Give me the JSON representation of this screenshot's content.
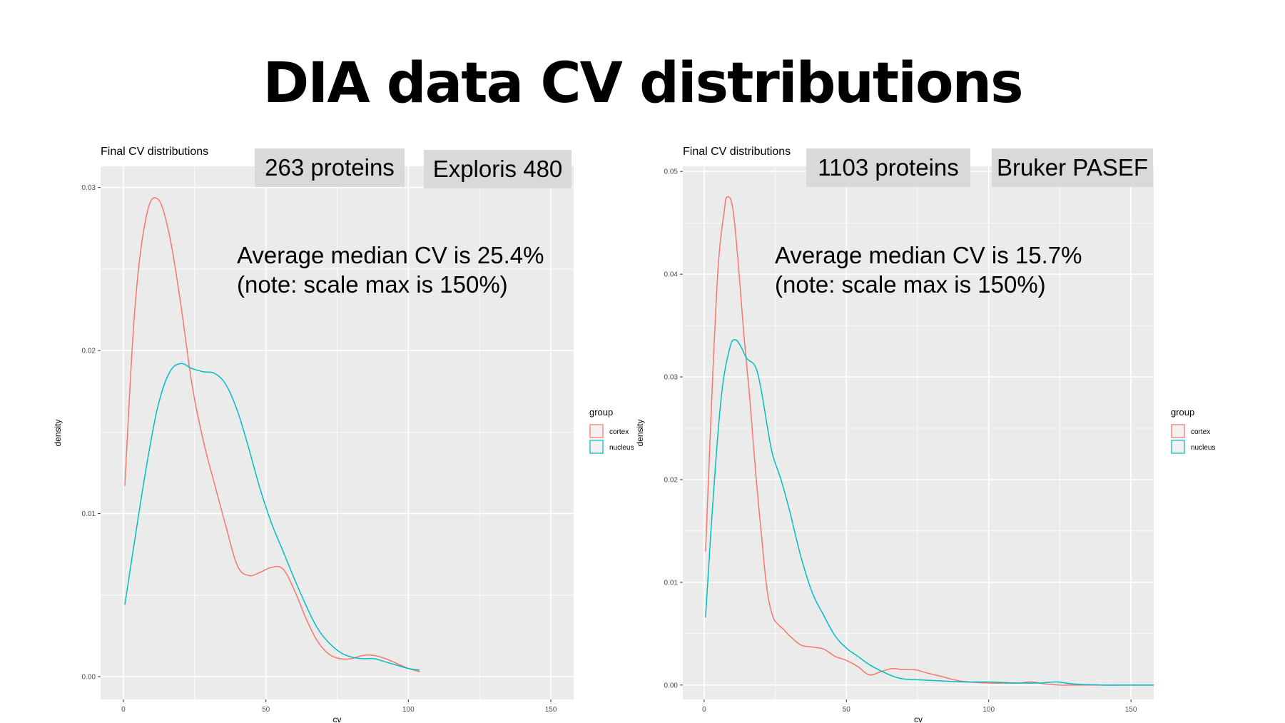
{
  "slide": {
    "title": "DIA data CV distributions"
  },
  "colors": {
    "cortex": "#f8766d",
    "nucleus": "#00bfc4",
    "panel_bg": "#ebebeb",
    "grid": "#ffffff",
    "callout_bg": "#d9d9d9"
  },
  "chart_data": [
    {
      "type": "line",
      "subtype": "density",
      "title": "Final CV distributions",
      "xlabel": "cv",
      "ylabel": "density",
      "xlim": [
        -8,
        158
      ],
      "ylim": [
        -0.0014,
        0.0313
      ],
      "xticks": [
        0,
        50,
        100,
        150
      ],
      "xtick_labels": [
        "0",
        "50",
        "100",
        "150"
      ],
      "yticks": [
        0.0,
        0.01,
        0.02,
        0.03
      ],
      "ytick_labels": [
        "0.00",
        "0.01",
        "0.02",
        "0.03"
      ],
      "grid": true,
      "legend": {
        "title": "group",
        "position": "right"
      },
      "series": [
        {
          "name": "cortex",
          "x": [
            0.5,
            4,
            8,
            12,
            16,
            20,
            24,
            28,
            32,
            36,
            40,
            44,
            48,
            52,
            56,
            60,
            64,
            68,
            72,
            76,
            80,
            84,
            88,
            92,
            96,
            100,
            104
          ],
          "y": [
            0.0117,
            0.0225,
            0.0282,
            0.0293,
            0.0272,
            0.023,
            0.018,
            0.0145,
            0.0118,
            0.0092,
            0.0068,
            0.0062,
            0.0064,
            0.0067,
            0.0066,
            0.0053,
            0.0036,
            0.0022,
            0.0014,
            0.0011,
            0.0011,
            0.0013,
            0.0013,
            0.0011,
            0.0008,
            0.0005,
            0.0003
          ]
        },
        {
          "name": "nucleus",
          "x": [
            0.5,
            4,
            8,
            12,
            16,
            20,
            24,
            28,
            32,
            36,
            40,
            44,
            48,
            52,
            56,
            60,
            64,
            68,
            72,
            76,
            80,
            84,
            88,
            92,
            96,
            100,
            104
          ],
          "y": [
            0.0044,
            0.0084,
            0.0128,
            0.0165,
            0.0186,
            0.0192,
            0.0189,
            0.0187,
            0.0186,
            0.0179,
            0.0163,
            0.014,
            0.0115,
            0.0094,
            0.0077,
            0.006,
            0.0044,
            0.003,
            0.0021,
            0.0015,
            0.0012,
            0.0011,
            0.0011,
            0.0009,
            0.0007,
            0.0005,
            0.0004
          ]
        }
      ]
    },
    {
      "type": "line",
      "subtype": "density",
      "title": "Final CV distributions",
      "xlabel": "cv",
      "ylabel": "density",
      "xlim": [
        -7.5,
        158
      ],
      "ylim": [
        -0.0014,
        0.0505
      ],
      "xticks": [
        0,
        50,
        100,
        150
      ],
      "xtick_labels": [
        "0",
        "50",
        "100",
        "150"
      ],
      "yticks": [
        0.0,
        0.01,
        0.02,
        0.03,
        0.04,
        0.05
      ],
      "ytick_labels": [
        "0.00",
        "0.01",
        "0.02",
        "0.03",
        "0.04",
        "0.05"
      ],
      "grid": true,
      "legend": {
        "title": "group",
        "position": "right"
      },
      "series": [
        {
          "name": "cortex",
          "x": [
            0.5,
            3,
            5,
            7,
            8,
            10,
            12,
            14,
            16,
            18,
            20,
            22,
            24,
            26,
            28,
            30,
            34,
            38,
            42,
            46,
            50,
            54,
            58,
            62,
            66,
            70,
            74,
            78,
            84,
            90,
            100,
            110,
            115,
            120,
            125,
            130,
            140,
            150,
            158
          ],
          "y": [
            0.013,
            0.03,
            0.041,
            0.046,
            0.0475,
            0.0465,
            0.041,
            0.034,
            0.028,
            0.021,
            0.015,
            0.0095,
            0.0068,
            0.0059,
            0.0054,
            0.0048,
            0.0039,
            0.0037,
            0.0035,
            0.0028,
            0.0024,
            0.0018,
            0.001,
            0.0013,
            0.0016,
            0.0015,
            0.0015,
            0.0012,
            0.0008,
            0.0004,
            0.0002,
            0.0002,
            0.0003,
            0.0001,
            0.0,
            0.0,
            0.0,
            0.0,
            0.0
          ]
        },
        {
          "name": "nucleus",
          "x": [
            0.5,
            3,
            6,
            9,
            11,
            13,
            15,
            18,
            20,
            22,
            24,
            27,
            30,
            34,
            38,
            42,
            46,
            50,
            54,
            58,
            62,
            66,
            70,
            76,
            84,
            92,
            100,
            110,
            118,
            124,
            130,
            140,
            150,
            158
          ],
          "y": [
            0.0066,
            0.0175,
            0.028,
            0.0328,
            0.0336,
            0.0329,
            0.0318,
            0.031,
            0.0288,
            0.0255,
            0.0225,
            0.02,
            0.017,
            0.0125,
            0.009,
            0.0068,
            0.0048,
            0.0036,
            0.0028,
            0.002,
            0.0014,
            0.0009,
            0.0006,
            0.0005,
            0.0004,
            0.0003,
            0.0003,
            0.0002,
            0.0002,
            0.0003,
            0.0001,
            0.0,
            0.0,
            0.0
          ]
        }
      ]
    }
  ],
  "callouts": [
    {
      "proteins": "263 proteins",
      "instrument": "Exploris 480",
      "note_line1": "Average median CV is 25.4%",
      "note_line2": "(note: scale max is 150%)"
    },
    {
      "proteins": "1103 proteins",
      "instrument": "Bruker PASEF",
      "note_line1": "Average median CV is 15.7%",
      "note_line2": "(note: scale max is 150%)"
    }
  ]
}
